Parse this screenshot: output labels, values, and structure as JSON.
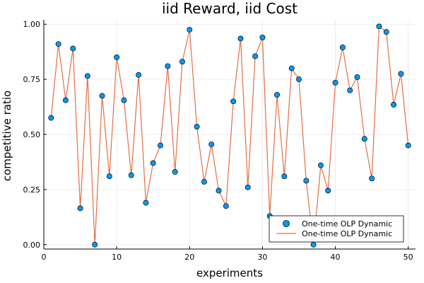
{
  "chart_data": {
    "type": "line",
    "title": "iid Reward, iid Cost",
    "xlabel": "experiments",
    "ylabel": "competitive ratio",
    "xlim": [
      0,
      51
    ],
    "ylim": [
      -0.02,
      1.02
    ],
    "xticks": [
      0,
      10,
      20,
      30,
      40,
      50
    ],
    "yticks": [
      0.0,
      0.25,
      0.5,
      0.75,
      1.0
    ],
    "xtick_labels": [
      "0",
      "10",
      "20",
      "30",
      "40",
      "50"
    ],
    "ytick_labels": [
      "0.00",
      "0.25",
      "0.50",
      "0.75",
      "1.00"
    ],
    "grid": true,
    "legend_position": "bottom-right",
    "x": [
      1,
      2,
      3,
      4,
      5,
      6,
      7,
      8,
      9,
      10,
      11,
      12,
      13,
      14,
      15,
      16,
      17,
      18,
      19,
      20,
      21,
      22,
      23,
      24,
      25,
      26,
      27,
      28,
      29,
      30,
      31,
      32,
      33,
      34,
      35,
      36,
      37,
      38,
      39,
      40,
      41,
      42,
      43,
      44,
      45,
      46,
      47,
      48,
      49,
      50
    ],
    "series": [
      {
        "name": "One-time OLP Dynamic",
        "kind": "scatter",
        "color": "#009AFA",
        "values": [
          0.575,
          0.91,
          0.655,
          0.89,
          0.165,
          0.765,
          0.0,
          0.675,
          0.31,
          0.85,
          0.655,
          0.315,
          0.77,
          0.19,
          0.37,
          0.45,
          0.81,
          0.33,
          0.83,
          0.975,
          0.535,
          0.285,
          0.455,
          0.245,
          0.175,
          0.65,
          0.935,
          0.26,
          0.855,
          0.94,
          0.13,
          0.68,
          0.31,
          0.8,
          0.75,
          0.29,
          0.0,
          0.36,
          0.245,
          0.735,
          0.895,
          0.7,
          0.76,
          0.48,
          0.3,
          0.99,
          0.965,
          0.635,
          0.775,
          0.45
        ]
      },
      {
        "name": "One-time OLP Dynamic",
        "kind": "line",
        "color": "#E26F46",
        "values": [
          0.575,
          0.91,
          0.655,
          0.89,
          0.165,
          0.765,
          0.0,
          0.675,
          0.31,
          0.85,
          0.655,
          0.315,
          0.77,
          0.19,
          0.37,
          0.45,
          0.81,
          0.33,
          0.83,
          0.975,
          0.535,
          0.285,
          0.455,
          0.245,
          0.175,
          0.65,
          0.935,
          0.26,
          0.855,
          0.94,
          0.13,
          0.68,
          0.31,
          0.8,
          0.75,
          0.29,
          0.0,
          0.36,
          0.245,
          0.735,
          0.895,
          0.7,
          0.76,
          0.48,
          0.3,
          0.99,
          0.965,
          0.635,
          0.775,
          0.45
        ]
      }
    ]
  }
}
